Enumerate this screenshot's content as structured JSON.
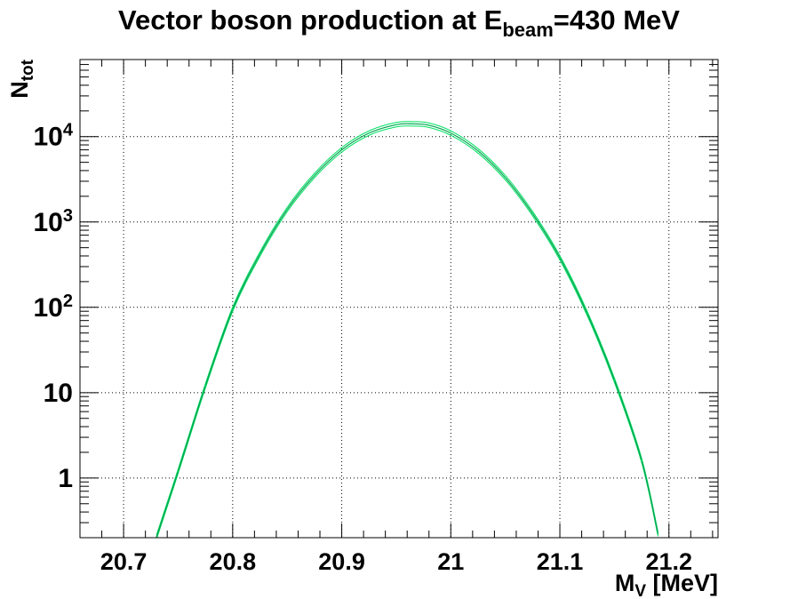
{
  "chart_data": {
    "type": "line",
    "title": {
      "main": "Vector boson production at E",
      "sub": "beam",
      "tail": "=430 MeV"
    },
    "xlabel": {
      "main": "M",
      "sub": "V",
      "tail": " [MeV]"
    },
    "ylabel": {
      "main": "N",
      "sub": "tot"
    },
    "xlim": [
      20.66,
      21.245
    ],
    "ylim": [
      0.2,
      80000
    ],
    "y_scale": "log",
    "grid": true,
    "x_ticks": [
      {
        "value": 20.7,
        "label": "20.7"
      },
      {
        "value": 20.8,
        "label": "20.8"
      },
      {
        "value": 20.9,
        "label": "20.9"
      },
      {
        "value": 21.0,
        "label": "21"
      },
      {
        "value": 21.1,
        "label": "21.1"
      },
      {
        "value": 21.2,
        "label": "21.2"
      }
    ],
    "y_ticks": [
      {
        "value": 1,
        "label": "1",
        "exp": ""
      },
      {
        "value": 10,
        "label": "10",
        "exp": ""
      },
      {
        "value": 100,
        "label": "10",
        "exp": "2"
      },
      {
        "value": 1000,
        "label": "10",
        "exp": "3"
      },
      {
        "value": 10000,
        "label": "10",
        "exp": "4"
      }
    ],
    "series": [
      {
        "color": "#00e060",
        "x": [
          20.73,
          20.75,
          20.775,
          20.8,
          20.825,
          20.85,
          20.875,
          20.9,
          20.925,
          20.95,
          20.965,
          20.98,
          21.0,
          21.025,
          21.05,
          21.075,
          21.1,
          21.125,
          21.15,
          21.175,
          21.19
        ],
        "y": [
          0.2,
          1.2,
          12,
          95,
          420,
          1400,
          3500,
          7000,
          11000,
          13800,
          14100,
          13600,
          11000,
          6800,
          3300,
          1250,
          380,
          85,
          14,
          1.6,
          0.22
        ]
      }
    ]
  }
}
